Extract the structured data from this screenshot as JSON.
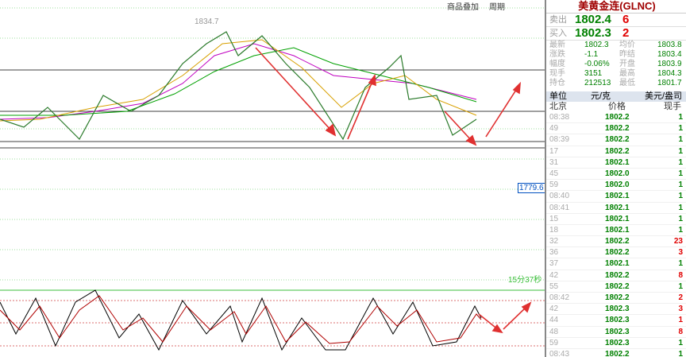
{
  "toolbar": {
    "overlay": "商品叠加",
    "period": "周期"
  },
  "chart": {
    "high_label": "1834.7",
    "price_tag": "1779.6",
    "countdown": "15分37秒"
  },
  "panel": {
    "title": "美黄金连(GLNC)",
    "sell": {
      "label": "卖出",
      "price": "1802.4",
      "size": "6"
    },
    "buy": {
      "label": "买入",
      "price": "1802.3",
      "size": "2"
    },
    "stats": [
      [
        "最新",
        "1802.3",
        "均价",
        "1803.8"
      ],
      [
        "涨跌",
        "-1.1",
        "昨结",
        "1803.4"
      ],
      [
        "幅度",
        "-0.06%",
        "开盘",
        "1803.9"
      ],
      [
        "现手",
        "3151",
        "最高",
        "1804.3"
      ],
      [
        "持仓",
        "212513",
        "最低",
        "1801.7"
      ]
    ],
    "unit": {
      "label": "单位",
      "cny": "元/克",
      "usd": "美元/盎司"
    },
    "columns": [
      "北京",
      "价格",
      "现手"
    ],
    "rows": [
      {
        "time": "08:38",
        "price": "1802.2",
        "size": "1",
        "color": "#008000"
      },
      {
        "time": "49",
        "price": "1802.2",
        "size": "1",
        "color": "#008000"
      },
      {
        "time": "08:39",
        "price": "1802.2",
        "size": "1",
        "color": "#008000"
      },
      {
        "time": "17",
        "price": "1802.2",
        "size": "1",
        "color": "#008000"
      },
      {
        "time": "31",
        "price": "1802.1",
        "size": "1",
        "color": "#008000"
      },
      {
        "time": "45",
        "price": "1802.0",
        "size": "1",
        "color": "#008000"
      },
      {
        "time": "59",
        "price": "1802.0",
        "size": "1",
        "color": "#008000"
      },
      {
        "time": "08:40",
        "price": "1802.1",
        "size": "1",
        "color": "#008000"
      },
      {
        "time": "08:41",
        "price": "1802.1",
        "size": "1",
        "color": "#008000"
      },
      {
        "time": "15",
        "price": "1802.1",
        "size": "1",
        "color": "#008000"
      },
      {
        "time": "18",
        "price": "1802.1",
        "size": "1",
        "color": "#008000"
      },
      {
        "time": "32",
        "price": "1802.2",
        "size": "23",
        "color": "#e00000"
      },
      {
        "time": "36",
        "price": "1802.2",
        "size": "3",
        "color": "#e00000"
      },
      {
        "time": "37",
        "price": "1802.1",
        "size": "1",
        "color": "#008000"
      },
      {
        "time": "42",
        "price": "1802.2",
        "size": "8",
        "color": "#e00000"
      },
      {
        "time": "55",
        "price": "1802.2",
        "size": "1",
        "color": "#008000"
      },
      {
        "time": "08:42",
        "price": "1802.2",
        "size": "2",
        "color": "#e00000"
      },
      {
        "time": "42",
        "price": "1802.3",
        "size": "3",
        "color": "#e00000"
      },
      {
        "time": "44",
        "price": "1802.3",
        "size": "1",
        "color": "#e00000"
      },
      {
        "time": "48",
        "price": "1802.3",
        "size": "8",
        "color": "#e00000"
      },
      {
        "time": "59",
        "price": "1802.3",
        "size": "1",
        "color": "#008000"
      },
      {
        "time": "08:43",
        "price": "1802.2",
        "size": "1",
        "color": "#008000"
      },
      {
        "time": "36",
        "price": "1802.2",
        "size": "1",
        "color": "#008000"
      }
    ]
  }
}
